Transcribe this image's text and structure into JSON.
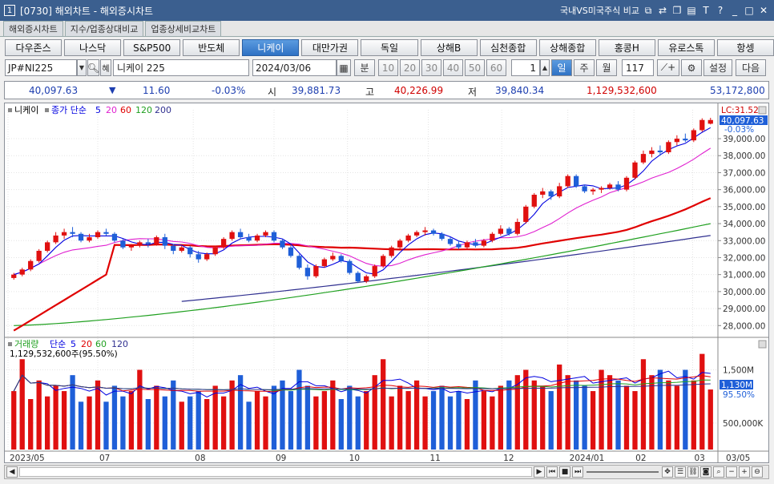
{
  "window": {
    "number": "1",
    "title": "[0730] 해외차트 - 해외증시차트",
    "right_label": "국내VS미국주식 비교",
    "icons": [
      "restore-icon",
      "link-icon",
      "copy-icon",
      "layout-icon",
      "text-icon",
      "help-icon"
    ],
    "controls": [
      "minimize-icon",
      "maximize-icon",
      "close-icon"
    ]
  },
  "tabs": [
    {
      "label": "해외증시차트",
      "active": true
    },
    {
      "label": "지수/업종상대비교",
      "active": false
    },
    {
      "label": "업종상세비교차트",
      "active": false
    }
  ],
  "markets": [
    {
      "label": "다우존스",
      "active": false
    },
    {
      "label": "나스닥",
      "active": false
    },
    {
      "label": "S&P500",
      "active": false
    },
    {
      "label": "반도체",
      "active": false
    },
    {
      "label": "니케이",
      "active": true
    },
    {
      "label": "대만가권",
      "active": false
    },
    {
      "label": "독일",
      "active": false
    },
    {
      "label": "상해B",
      "active": false
    },
    {
      "label": "심천종합",
      "active": false
    },
    {
      "label": "상해종합",
      "active": false
    },
    {
      "label": "홍콩H",
      "active": false
    },
    {
      "label": "유로스톡",
      "active": false
    },
    {
      "label": "항셍",
      "active": false
    }
  ],
  "controls": {
    "symbol": "JP#NI225",
    "filter_label": "혜",
    "name": "니케이 225",
    "date": "2024/03/06",
    "minute_label": "분",
    "intervals": [
      "10",
      "20",
      "30",
      "40",
      "50",
      "60"
    ],
    "count": "1",
    "periods": [
      {
        "label": "일",
        "active": true
      },
      {
        "label": "주",
        "active": false
      },
      {
        "label": "월",
        "active": false
      }
    ],
    "bars": "117",
    "settings_label": "설정",
    "next_label": "다음"
  },
  "quote": {
    "price": "40,097.63",
    "arrow": "▼",
    "change": "11.60",
    "pct": "-0.03%",
    "open_label": "시",
    "open": "39,881.73",
    "high_label": "고",
    "high": "40,226.99",
    "low_label": "저",
    "low": "39,840.34",
    "volume": "1,129,532,600",
    "amount": "53,172,800"
  },
  "price_panel": {
    "legend_name": "니케이",
    "legend_type": "종가 단순",
    "ma_periods": [
      "5",
      "20",
      "60",
      "120",
      "200"
    ],
    "lc_label": "LC:31.52",
    "last_price_label": "40,097.63",
    "last_pct_label": "-0.03%",
    "y_ticks": [
      "39,000.00",
      "38,000.00",
      "37,000.00",
      "36,000.00",
      "35,000.00",
      "34,000.00",
      "33,000.00",
      "32,000.00",
      "31,000.00",
      "30,000.00",
      "29,000.00",
      "28,000.00"
    ]
  },
  "volume_panel": {
    "legend_name": "거래량",
    "legend_type": "단순",
    "ma_periods": [
      "5",
      "20",
      "60",
      "120"
    ],
    "info_line": "1,129,532,600주(95.50%)",
    "y_ticks": [
      "1,500M",
      "500,000K"
    ],
    "last_label": "1,130M",
    "last_pct_label": "95.50%"
  },
  "x_axis": {
    "labels": [
      "2023/05",
      "07",
      "08",
      "09",
      "10",
      "11",
      "12",
      "2024/01",
      "02",
      "03"
    ],
    "right_label": "03/05"
  },
  "colors": {
    "up": "#e01010",
    "down": "#1f5fd8",
    "ma5": "#0000e0",
    "ma20": "#e020d0",
    "ma60": "#e00000",
    "ma120": "#20a020",
    "ma200": "#303090",
    "active_button": "#3478cc",
    "title_bar": "#3b5f8f"
  },
  "chart_data": {
    "type": "candlestick",
    "y_range": [
      27400,
      40700
    ],
    "volume_range_m": [
      0,
      1900
    ],
    "x_range": [
      "2023/05",
      "2024/03"
    ],
    "series": [
      {
        "name": "니케이",
        "values": [
          [
            30800,
            31100,
            30700,
            31000
          ],
          [
            31000,
            31400,
            30900,
            31300
          ],
          [
            31300,
            31900,
            31200,
            31800
          ],
          [
            31800,
            32500,
            31700,
            32400
          ],
          [
            32400,
            33000,
            32300,
            32900
          ],
          [
            32900,
            33500,
            32800,
            33300
          ],
          [
            33300,
            33700,
            33100,
            33500
          ],
          [
            33500,
            33800,
            33200,
            33400
          ],
          [
            33400,
            33500,
            32900,
            33000
          ],
          [
            33000,
            33400,
            32900,
            33200
          ],
          [
            33200,
            33600,
            33100,
            33500
          ],
          [
            33500,
            33700,
            33300,
            33400
          ],
          [
            33400,
            33500,
            32900,
            33000
          ],
          [
            33000,
            33100,
            32500,
            32600
          ],
          [
            32600,
            32800,
            32400,
            32700
          ],
          [
            32700,
            33000,
            32600,
            32900
          ],
          [
            32900,
            33100,
            32600,
            32800
          ],
          [
            32800,
            33300,
            32700,
            33200
          ],
          [
            33200,
            33400,
            32500,
            32700
          ],
          [
            32700,
            32800,
            32200,
            32400
          ],
          [
            32400,
            32700,
            32300,
            32600
          ],
          [
            32600,
            32700,
            32000,
            32200
          ],
          [
            32200,
            32400,
            31700,
            31900
          ],
          [
            31900,
            32300,
            31800,
            32200
          ],
          [
            32200,
            32700,
            32100,
            32600
          ],
          [
            32600,
            33200,
            32500,
            33100
          ],
          [
            33100,
            33600,
            33000,
            33500
          ],
          [
            33500,
            33700,
            33100,
            33200
          ],
          [
            33200,
            33400,
            32900,
            33000
          ],
          [
            33000,
            33400,
            32900,
            33300
          ],
          [
            33300,
            33600,
            33200,
            33500
          ],
          [
            33500,
            33600,
            32900,
            33000
          ],
          [
            33000,
            33100,
            32500,
            32600
          ],
          [
            32600,
            32700,
            32000,
            32100
          ],
          [
            32100,
            32200,
            31300,
            31400
          ],
          [
            31400,
            31600,
            30700,
            30900
          ],
          [
            30900,
            31600,
            30800,
            31500
          ],
          [
            31500,
            32000,
            31400,
            31900
          ],
          [
            31900,
            32300,
            31800,
            32100
          ],
          [
            32100,
            32200,
            31700,
            31800
          ],
          [
            31800,
            31900,
            31000,
            31100
          ],
          [
            31100,
            31200,
            30500,
            30600
          ],
          [
            30600,
            31000,
            30500,
            30900
          ],
          [
            30900,
            31600,
            30800,
            31500
          ],
          [
            31500,
            32200,
            31400,
            32100
          ],
          [
            32100,
            32700,
            32000,
            32600
          ],
          [
            32600,
            33100,
            32500,
            33000
          ],
          [
            33000,
            33400,
            32900,
            33300
          ],
          [
            33300,
            33600,
            33200,
            33500
          ],
          [
            33500,
            33800,
            33300,
            33600
          ],
          [
            33600,
            33700,
            33300,
            33400
          ],
          [
            33400,
            33500,
            33000,
            33100
          ],
          [
            33100,
            33200,
            32700,
            32800
          ],
          [
            32800,
            33000,
            32500,
            32600
          ],
          [
            32600,
            33000,
            32500,
            32900
          ],
          [
            32900,
            33100,
            32600,
            32700
          ],
          [
            32700,
            33100,
            32600,
            33000
          ],
          [
            33000,
            33500,
            32900,
            33400
          ],
          [
            33400,
            33900,
            33300,
            33700
          ],
          [
            33700,
            33800,
            33300,
            33400
          ],
          [
            33400,
            34300,
            33300,
            34100
          ],
          [
            34100,
            35100,
            34000,
            35000
          ],
          [
            35000,
            35800,
            34900,
            35700
          ],
          [
            35700,
            36100,
            35500,
            35900
          ],
          [
            35900,
            36000,
            35400,
            35600
          ],
          [
            35600,
            36400,
            35500,
            36200
          ],
          [
            36200,
            36900,
            36100,
            36800
          ],
          [
            36800,
            36900,
            36100,
            36200
          ],
          [
            36200,
            36300,
            35800,
            35900
          ],
          [
            35900,
            36100,
            35700,
            36000
          ],
          [
            36000,
            36200,
            35800,
            36100
          ],
          [
            36100,
            36400,
            36000,
            36300
          ],
          [
            36300,
            36500,
            35900,
            36000
          ],
          [
            36000,
            36800,
            35900,
            36700
          ],
          [
            36700,
            37700,
            36600,
            37600
          ],
          [
            37600,
            38300,
            37500,
            38100
          ],
          [
            38100,
            38500,
            37900,
            38300
          ],
          [
            38300,
            38600,
            38000,
            38200
          ],
          [
            38200,
            38900,
            38100,
            38800
          ],
          [
            38800,
            39200,
            38600,
            39000
          ],
          [
            39000,
            39300,
            38800,
            38900
          ],
          [
            38900,
            39600,
            38800,
            39500
          ],
          [
            39500,
            40200,
            39400,
            40100
          ],
          [
            39880,
            40227,
            39840,
            40098
          ]
        ]
      },
      {
        "name": "거래량",
        "values_m": [
          1100,
          1700,
          950,
          1300,
          1000,
          1200,
          1100,
          1400,
          900,
          1000,
          1300,
          900,
          1200,
          1000,
          1100,
          1500,
          950,
          1200,
          1000,
          1300,
          900,
          1000,
          1100,
          950,
          1200,
          1000,
          1300,
          1400,
          900,
          1100,
          1000,
          1200,
          1300,
          1100,
          1500,
          1200,
          1000,
          1100,
          1300,
          950,
          1200,
          1000,
          1100,
          1400,
          1700,
          1000,
          1200,
          1100,
          1300,
          1000,
          1100,
          1200,
          1000,
          1100,
          950,
          1300,
          1100,
          1000,
          1200,
          1300,
          1400,
          1500,
          1300,
          1200,
          1100,
          1600,
          1400,
          1300,
          1200,
          1100,
          1500,
          1400,
          1300,
          1200,
          1100,
          1700,
          1400,
          1500,
          1300,
          1200,
          1500,
          1300,
          1800,
          1130
        ]
      }
    ]
  }
}
